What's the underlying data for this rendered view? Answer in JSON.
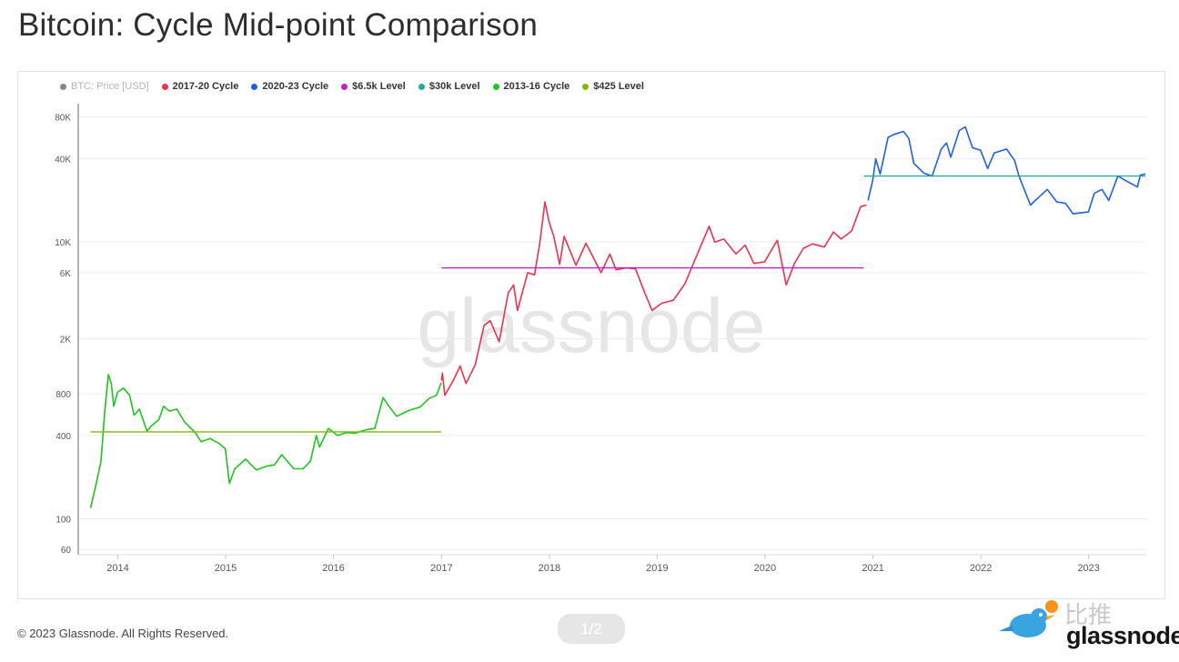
{
  "page": {
    "title": "Bitcoin: Cycle Mid-point Comparison"
  },
  "legend": [
    {
      "label": "BTC: Price [USD]",
      "color": "#7f8c8d",
      "muted": true
    },
    {
      "label": "2017-20 Cycle",
      "color": "#f0304f"
    },
    {
      "label": "2020-23 Cycle",
      "color": "#1f5fe8"
    },
    {
      "label": "$6.5k Level",
      "color": "#c31fc6"
    },
    {
      "label": "$30k Level",
      "color": "#25a9a4"
    },
    {
      "label": "2013-16 Cycle",
      "color": "#1ec51e"
    },
    {
      "label": "$425 Level",
      "color": "#7fba00"
    }
  ],
  "watermark": "glassnode",
  "footer": {
    "copyright": "© 2023 Glassnode. All Rights Reserved.",
    "pager": "1/2",
    "brand_cn": "比推",
    "brand_name": "glassnode"
  },
  "chart_data": {
    "type": "line",
    "y_scale": "log",
    "ylim": [
      55,
      100000
    ],
    "xlim": [
      "2013-08-20",
      "2023-07-15"
    ],
    "y_ticks": [
      {
        "value": 60,
        "label": "60"
      },
      {
        "value": 100,
        "label": "100"
      },
      {
        "value": 400,
        "label": "400"
      },
      {
        "value": 800,
        "label": "800"
      },
      {
        "value": 2000,
        "label": "2K"
      },
      {
        "value": 6000,
        "label": "6K"
      },
      {
        "value": 10000,
        "label": "10K"
      },
      {
        "value": 40000,
        "label": "40K"
      },
      {
        "value": 80000,
        "label": "80K"
      }
    ],
    "x_ticks": [
      {
        "value": "2014-01-01",
        "label": "2014"
      },
      {
        "value": "2015-01-01",
        "label": "2015"
      },
      {
        "value": "2016-01-01",
        "label": "2016"
      },
      {
        "value": "2017-01-01",
        "label": "2017"
      },
      {
        "value": "2018-01-01",
        "label": "2018"
      },
      {
        "value": "2019-01-01",
        "label": "2019"
      },
      {
        "value": "2020-01-01",
        "label": "2020"
      },
      {
        "value": "2021-01-01",
        "label": "2021"
      },
      {
        "value": "2022-01-01",
        "label": "2022"
      },
      {
        "value": "2023-01-01",
        "label": "2023"
      }
    ],
    "grid": true,
    "series": [
      {
        "name": "2013-16 Cycle",
        "color": "#1ec51e",
        "points": [
          [
            "2013-10-01",
            120
          ],
          [
            "2013-10-20",
            180
          ],
          [
            "2013-11-05",
            260
          ],
          [
            "2013-11-18",
            600
          ],
          [
            "2013-11-30",
            1100
          ],
          [
            "2013-12-10",
            950
          ],
          [
            "2013-12-18",
            650
          ],
          [
            "2013-12-31",
            820
          ],
          [
            "2014-01-20",
            880
          ],
          [
            "2014-02-10",
            780
          ],
          [
            "2014-02-25",
            560
          ],
          [
            "2014-03-15",
            620
          ],
          [
            "2014-04-10",
            430
          ],
          [
            "2014-04-25",
            470
          ],
          [
            "2014-05-20",
            520
          ],
          [
            "2014-06-05",
            650
          ],
          [
            "2014-06-25",
            600
          ],
          [
            "2014-07-20",
            620
          ],
          [
            "2014-08-15",
            500
          ],
          [
            "2014-09-20",
            420
          ],
          [
            "2014-10-10",
            360
          ],
          [
            "2014-11-10",
            380
          ],
          [
            "2014-12-10",
            350
          ],
          [
            "2014-12-31",
            320
          ],
          [
            "2015-01-14",
            180
          ],
          [
            "2015-02-01",
            230
          ],
          [
            "2015-03-10",
            270
          ],
          [
            "2015-04-15",
            225
          ],
          [
            "2015-05-20",
            240
          ],
          [
            "2015-06-15",
            245
          ],
          [
            "2015-07-10",
            290
          ],
          [
            "2015-08-20",
            230
          ],
          [
            "2015-09-20",
            230
          ],
          [
            "2015-10-15",
            260
          ],
          [
            "2015-11-04",
            400
          ],
          [
            "2015-11-15",
            330
          ],
          [
            "2015-12-15",
            450
          ],
          [
            "2016-01-15",
            400
          ],
          [
            "2016-02-15",
            420
          ],
          [
            "2016-03-15",
            415
          ],
          [
            "2016-04-20",
            440
          ],
          [
            "2016-05-20",
            450
          ],
          [
            "2016-06-17",
            750
          ],
          [
            "2016-07-05",
            660
          ],
          [
            "2016-08-02",
            550
          ],
          [
            "2016-09-15",
            610
          ],
          [
            "2016-10-20",
            640
          ],
          [
            "2016-11-20",
            740
          ],
          [
            "2016-12-15",
            780
          ],
          [
            "2016-12-31",
            960
          ]
        ]
      },
      {
        "name": "2017-20 Cycle",
        "color": "#f0304f",
        "points": [
          [
            "2017-01-01",
            1000
          ],
          [
            "2017-01-04",
            1130
          ],
          [
            "2017-01-12",
            780
          ],
          [
            "2017-02-10",
            1000
          ],
          [
            "2017-03-05",
            1270
          ],
          [
            "2017-03-25",
            950
          ],
          [
            "2017-04-25",
            1300
          ],
          [
            "2017-05-25",
            2500
          ],
          [
            "2017-06-15",
            2700
          ],
          [
            "2017-07-15",
            1900
          ],
          [
            "2017-08-15",
            4300
          ],
          [
            "2017-09-02",
            4900
          ],
          [
            "2017-09-15",
            3200
          ],
          [
            "2017-10-20",
            6000
          ],
          [
            "2017-11-12",
            5800
          ],
          [
            "2017-11-30",
            10000
          ],
          [
            "2017-12-17",
            19500
          ],
          [
            "2017-12-31",
            14000
          ],
          [
            "2018-01-16",
            11000
          ],
          [
            "2018-02-05",
            6900
          ],
          [
            "2018-02-20",
            11000
          ],
          [
            "2018-04-01",
            6800
          ],
          [
            "2018-05-05",
            9800
          ],
          [
            "2018-06-25",
            6000
          ],
          [
            "2018-07-25",
            8200
          ],
          [
            "2018-08-15",
            6300
          ],
          [
            "2018-09-20",
            6500
          ],
          [
            "2018-10-20",
            6400
          ],
          [
            "2018-11-20",
            4300
          ],
          [
            "2018-12-15",
            3200
          ],
          [
            "2019-01-15",
            3600
          ],
          [
            "2019-02-25",
            3800
          ],
          [
            "2019-04-05",
            5000
          ],
          [
            "2019-05-15",
            8000
          ],
          [
            "2019-06-26",
            13000
          ],
          [
            "2019-07-15",
            10000
          ],
          [
            "2019-08-15",
            10500
          ],
          [
            "2019-09-25",
            8200
          ],
          [
            "2019-10-26",
            9500
          ],
          [
            "2019-11-25",
            7000
          ],
          [
            "2019-12-31",
            7200
          ],
          [
            "2020-02-12",
            10300
          ],
          [
            "2020-03-13",
            4900
          ],
          [
            "2020-04-10",
            7000
          ],
          [
            "2020-05-10",
            9000
          ],
          [
            "2020-06-10",
            9700
          ],
          [
            "2020-07-20",
            9200
          ],
          [
            "2020-08-20",
            11800
          ],
          [
            "2020-09-15",
            10500
          ],
          [
            "2020-10-20",
            12000
          ],
          [
            "2020-11-20",
            18000
          ],
          [
            "2020-12-10",
            18500
          ]
        ]
      },
      {
        "name": "2020-23 Cycle",
        "color": "#1f5fe8",
        "points": [
          [
            "2020-12-15",
            20000
          ],
          [
            "2020-12-31",
            28000
          ],
          [
            "2021-01-10",
            40000
          ],
          [
            "2021-01-25",
            31000
          ],
          [
            "2021-02-21",
            57000
          ],
          [
            "2021-03-13",
            60000
          ],
          [
            "2021-04-14",
            63000
          ],
          [
            "2021-05-02",
            56000
          ],
          [
            "2021-05-19",
            37000
          ],
          [
            "2021-06-22",
            31500
          ],
          [
            "2021-07-20",
            30000
          ],
          [
            "2021-08-20",
            47000
          ],
          [
            "2021-09-07",
            52000
          ],
          [
            "2021-09-21",
            41000
          ],
          [
            "2021-10-20",
            64000
          ],
          [
            "2021-11-09",
            68000
          ],
          [
            "2021-12-04",
            48000
          ],
          [
            "2021-12-31",
            46000
          ],
          [
            "2022-01-24",
            34000
          ],
          [
            "2022-02-15",
            44000
          ],
          [
            "2022-03-29",
            47000
          ],
          [
            "2022-04-25",
            39000
          ],
          [
            "2022-05-10",
            30000
          ],
          [
            "2022-06-18",
            18500
          ],
          [
            "2022-07-10",
            20500
          ],
          [
            "2022-08-14",
            24000
          ],
          [
            "2022-09-15",
            19500
          ],
          [
            "2022-10-15",
            19000
          ],
          [
            "2022-11-09",
            16000
          ],
          [
            "2022-12-31",
            16500
          ],
          [
            "2023-01-20",
            22500
          ],
          [
            "2023-02-15",
            24000
          ],
          [
            "2023-03-10",
            20000
          ],
          [
            "2023-04-10",
            30000
          ],
          [
            "2023-05-10",
            27500
          ],
          [
            "2023-06-15",
            25000
          ],
          [
            "2023-06-25",
            30500
          ],
          [
            "2023-07-12",
            31000
          ]
        ]
      },
      {
        "name": "$425 Level",
        "color": "#7fba00",
        "points": [
          [
            "2013-10-01",
            425
          ],
          [
            "2016-12-31",
            425
          ]
        ]
      },
      {
        "name": "$6.5k Level",
        "color": "#c31fc6",
        "points": [
          [
            "2017-01-01",
            6500
          ],
          [
            "2020-11-30",
            6500
          ]
        ]
      },
      {
        "name": "$30k Level",
        "color": "#25a9a4",
        "points": [
          [
            "2020-12-01",
            30000
          ],
          [
            "2023-07-12",
            30000
          ]
        ]
      }
    ]
  }
}
